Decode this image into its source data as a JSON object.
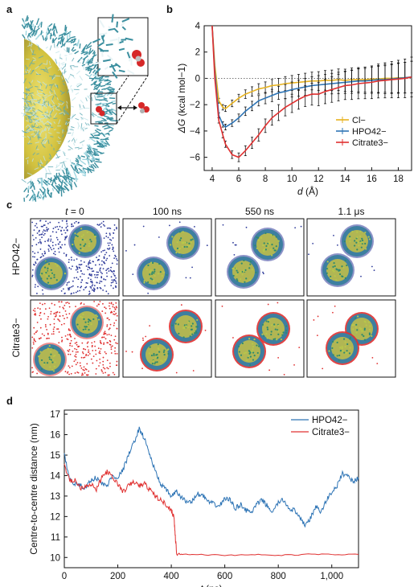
{
  "panels": {
    "a": {
      "letter": "a"
    },
    "b": {
      "letter": "b"
    },
    "c": {
      "letter": "c",
      "time_labels": [
        "t = 0",
        "100 ns",
        "550 ns",
        "1.1 μs"
      ],
      "row_labels": [
        "HPO42−",
        "Citrate3−"
      ]
    },
    "d": {
      "letter": "d"
    }
  },
  "colors": {
    "chloride": "#e7b21f",
    "phosphate": "#2e74b5",
    "citrate": "#e03030",
    "phosphate_ion": "#2f3b9a",
    "nanoparticle_core": "#d8c83a",
    "ligand": "#3b8f9f"
  },
  "chart_data": [
    {
      "type": "line",
      "panel": "b",
      "xlabel": "d (Å)",
      "ylabel": "ΔG (kcal mol−1)",
      "xlim": [
        3.4,
        19
      ],
      "ylim": [
        -7,
        4
      ],
      "xticks": [
        4,
        6,
        8,
        10,
        12,
        14,
        16,
        18
      ],
      "yticks": [
        -6,
        -4,
        -2,
        0,
        2,
        4
      ],
      "reference_line_y": 0,
      "legend": "bottom-right",
      "series": [
        {
          "name": "Cl−",
          "x": [
            4.0,
            4.2,
            4.5,
            4.8,
            5.0,
            5.5,
            6.0,
            6.5,
            7.0,
            7.5,
            8.0,
            8.5,
            9.0,
            9.5,
            10.0,
            10.5,
            11.0,
            11.5,
            12.0,
            12.5,
            13.0,
            13.5,
            14.0,
            14.5,
            15.0,
            15.5,
            16.0,
            16.5,
            17.0,
            17.5,
            18.0,
            18.5,
            19.0
          ],
          "y": [
            4.0,
            1.0,
            -1.7,
            -2.2,
            -2.3,
            -1.9,
            -1.5,
            -1.2,
            -1.0,
            -0.8,
            -0.7,
            -0.55,
            -0.5,
            -0.4,
            -0.35,
            -0.3,
            -0.25,
            -0.2,
            -0.2,
            -0.15,
            -0.15,
            -0.1,
            -0.15,
            -0.1,
            -0.1,
            -0.1,
            -0.05,
            -0.05,
            0.0,
            0.0,
            0.05,
            0.05,
            0.1
          ]
        },
        {
          "name": "HPO42−",
          "x": [
            4.0,
            4.2,
            4.5,
            4.8,
            5.0,
            5.5,
            6.0,
            6.5,
            7.0,
            7.5,
            8.0,
            8.5,
            9.0,
            9.5,
            10.0,
            10.5,
            11.0,
            11.5,
            12.0,
            12.5,
            13.0,
            13.5,
            14.0,
            14.5,
            15.0,
            15.5,
            16.0,
            16.5,
            17.0,
            17.5,
            18.0,
            18.5,
            19.0
          ],
          "y": [
            4.0,
            0.5,
            -2.8,
            -3.5,
            -3.7,
            -3.4,
            -3.0,
            -2.5,
            -2.1,
            -1.7,
            -1.5,
            -1.3,
            -1.1,
            -1.0,
            -0.85,
            -0.75,
            -0.65,
            -0.55,
            -0.5,
            -0.45,
            -0.4,
            -0.35,
            -0.3,
            -0.25,
            -0.2,
            -0.2,
            -0.15,
            -0.1,
            -0.1,
            -0.05,
            0.0,
            0.05,
            0.1
          ]
        },
        {
          "name": "Citrate3−",
          "x": [
            4.0,
            4.2,
            4.5,
            4.8,
            5.0,
            5.5,
            6.0,
            6.5,
            7.0,
            7.5,
            8.0,
            8.5,
            9.0,
            9.5,
            10.0,
            10.5,
            11.0,
            11.5,
            12.0,
            12.5,
            13.0,
            13.5,
            14.0,
            14.5,
            15.0,
            15.5,
            16.0,
            16.5,
            17.0,
            17.5,
            18.0,
            18.5,
            19.0
          ],
          "y": [
            4.0,
            0.0,
            -3.2,
            -4.3,
            -5.0,
            -5.8,
            -6.0,
            -5.5,
            -4.9,
            -4.3,
            -3.6,
            -3.0,
            -2.6,
            -2.2,
            -1.9,
            -1.6,
            -1.35,
            -1.2,
            -1.2,
            -1.0,
            -0.85,
            -0.7,
            -0.55,
            -0.5,
            -0.4,
            -0.35,
            -0.3,
            -0.2,
            -0.15,
            -0.1,
            -0.05,
            0.0,
            0.1
          ]
        }
      ]
    },
    {
      "type": "line",
      "panel": "d",
      "xlabel": "t (ns)",
      "ylabel": "Centre-to-centre distance (nm)",
      "xlim": [
        0,
        1100
      ],
      "ylim": [
        9.5,
        17.2
      ],
      "xticks": [
        0,
        200,
        400,
        600,
        800,
        1000
      ],
      "xtick_labels": [
        "0",
        "200",
        "400",
        "600",
        "800",
        "1,000"
      ],
      "yticks": [
        10,
        11,
        12,
        13,
        14,
        15,
        16,
        17
      ],
      "legend": "top-right",
      "series": [
        {
          "name": "HPO42−",
          "x": [
            0,
            20,
            40,
            60,
            80,
            100,
            120,
            140,
            160,
            180,
            200,
            220,
            240,
            260,
            280,
            300,
            320,
            340,
            360,
            380,
            400,
            420,
            440,
            460,
            480,
            500,
            520,
            540,
            560,
            580,
            600,
            620,
            640,
            660,
            680,
            700,
            720,
            740,
            760,
            780,
            800,
            820,
            840,
            860,
            880,
            900,
            920,
            940,
            960,
            980,
            1000,
            1020,
            1040,
            1060,
            1080,
            1100
          ],
          "y": [
            15.0,
            13.8,
            13.6,
            13.5,
            13.4,
            13.8,
            13.9,
            13.6,
            13.5,
            14.0,
            13.9,
            14.3,
            15.0,
            15.6,
            16.3,
            15.8,
            15.0,
            14.2,
            13.6,
            13.3,
            13.0,
            13.2,
            12.9,
            12.7,
            12.8,
            13.1,
            13.0,
            12.7,
            12.6,
            12.5,
            12.9,
            12.8,
            12.4,
            12.6,
            12.3,
            12.2,
            12.6,
            12.8,
            12.5,
            12.2,
            12.7,
            12.8,
            12.4,
            12.3,
            11.9,
            11.6,
            11.9,
            12.5,
            12.2,
            12.8,
            13.2,
            13.5,
            14.1,
            14.0,
            13.7,
            13.9
          ]
        },
        {
          "name": "Citrate3−",
          "x": [
            0,
            20,
            40,
            60,
            80,
            100,
            120,
            140,
            160,
            180,
            200,
            220,
            240,
            260,
            280,
            300,
            320,
            340,
            360,
            380,
            400,
            410,
            415,
            420,
            440,
            500,
            600,
            700,
            800,
            900,
            1000,
            1100
          ],
          "y": [
            14.6,
            13.7,
            13.8,
            13.4,
            13.5,
            13.6,
            13.3,
            13.9,
            14.2,
            13.9,
            13.6,
            13.2,
            13.5,
            13.7,
            13.5,
            13.6,
            13.3,
            13.0,
            12.8,
            12.6,
            12.3,
            12.0,
            11.0,
            10.2,
            10.15,
            10.15,
            10.1,
            10.15,
            10.1,
            10.15,
            10.15,
            10.15
          ]
        }
      ]
    }
  ]
}
